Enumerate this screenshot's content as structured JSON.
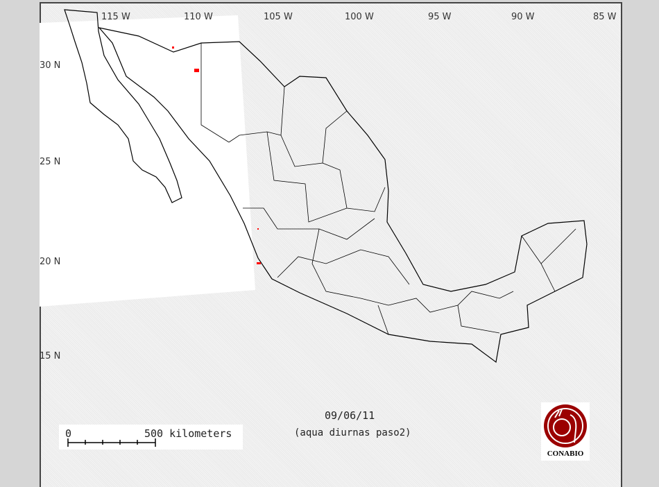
{
  "map": {
    "date": "09/06/11",
    "subtitle": "(aqua diurnas paso2)",
    "longitude_labels": [
      "115 W",
      "110 W",
      "105 W",
      "100 W",
      "95 W",
      "90 W",
      "85 W"
    ],
    "latitude_labels": [
      "30 N",
      "25 N",
      "20 N",
      "15 N"
    ],
    "scale_bar": {
      "start": "0",
      "end": "500 kilometers"
    },
    "logo_text": "CONABIO",
    "colors": {
      "outline": "#000000",
      "hotspot": "#ff0000",
      "logo": "#9b0000",
      "frame": "#d6d6d6"
    }
  }
}
